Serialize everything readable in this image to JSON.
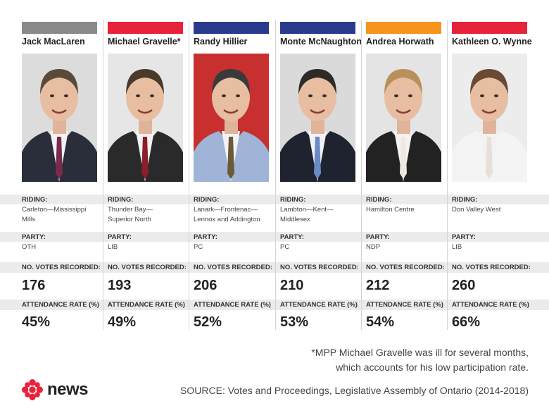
{
  "labels": {
    "riding": "RIDING:",
    "party": "PARTY:",
    "votes": "NO. VOTES RECORDED:",
    "attendance": "ATTENDANCE RATE (%)"
  },
  "mpps": [
    {
      "name": "Jack MacLaren",
      "color": "#8a8a8a",
      "riding": [
        "Carleton—Mississippi",
        "Mills"
      ],
      "party": "OTH",
      "votes": "176",
      "attendance": "45%",
      "bg": "#dcdcdc",
      "suit": "#2a2d3a",
      "tie": "#7a2a4a",
      "hair": "#5a4a3a"
    },
    {
      "name": "Michael Gravelle*",
      "color": "#e8223b",
      "riding": [
        "Thunder Bay—",
        "Superior North"
      ],
      "party": "LIB",
      "votes": "193",
      "attendance": "49%",
      "bg": "#e6e6e6",
      "suit": "#2a2a2a",
      "tie": "#8a1f2a",
      "hair": "#4a3a2a"
    },
    {
      "name": "Randy Hillier",
      "color": "#2a3a8c",
      "riding": [
        "Lanark—Frontenac—",
        "Lennox and Addington"
      ],
      "party": "PC",
      "votes": "206",
      "attendance": "52%",
      "bg": "#c8302f",
      "suit": "#9fb4d6",
      "tie": "#6a5a3a",
      "hair": "#3a3a3a"
    },
    {
      "name": "Monte McNaughton",
      "color": "#2a3a8c",
      "riding": [
        "Lambton—Kent—",
        "Middlesex"
      ],
      "party": "PC",
      "votes": "210",
      "attendance": "53%",
      "bg": "#dadada",
      "suit": "#1f2330",
      "tie": "#6a8ac6",
      "hair": "#2e2a26"
    },
    {
      "name": "Andrea Horwath",
      "color": "#f7941d",
      "riding": [
        "Hamilton Centre"
      ],
      "party": "NDP",
      "votes": "212",
      "attendance": "54%",
      "bg": "#e4e4e4",
      "suit": "#222222",
      "tie": "#f0e8e0",
      "hair": "#b8905a"
    },
    {
      "name": "Kathleen O. Wynne",
      "color": "#e8223b",
      "riding": [
        "Don Valley West"
      ],
      "party": "LIB",
      "votes": "260",
      "attendance": "66%",
      "bg": "#ececec",
      "suit": "#f4f4f4",
      "tie": "#e8e0d8",
      "hair": "#6a4a34"
    }
  ],
  "footnote": [
    "*MPP Michael Gravelle was ill for several months,",
    "which accounts for his low participation rate."
  ],
  "source_label": "SOURCE:",
  "source_text": " Votes and Proceedings, Legislative Assembly of Ontario (2014-2018)",
  "brand": "news",
  "brand_color": "#e8223b"
}
